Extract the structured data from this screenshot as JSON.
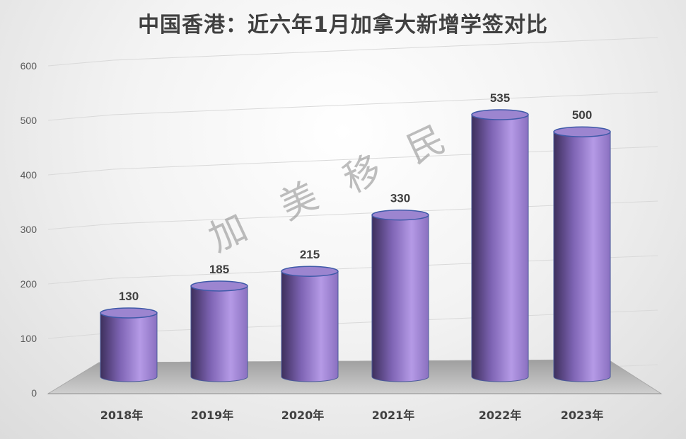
{
  "chart_data": {
    "type": "bar",
    "title": "中国香港：近六年1月加拿大新增学签对比",
    "categories": [
      "2018年",
      "2019年",
      "2020年",
      "2021年",
      "2022年",
      "2023年"
    ],
    "values": [
      130,
      185,
      215,
      330,
      535,
      500
    ],
    "data_labels": [
      "130",
      "185",
      "215",
      "330",
      "535",
      "500"
    ],
    "y_ticks": [
      "0",
      "100",
      "200",
      "300",
      "400",
      "500",
      "600"
    ],
    "ylim": [
      0,
      600
    ],
    "grid": true,
    "legend": "none",
    "style": "3d-cylinder",
    "colors": {
      "bar": "#8e72c2",
      "bar_dark": "#4a3a6e",
      "bar_light": "#b79be6",
      "bar_top": "#9b83d0",
      "floor": "#bdbdbd"
    }
  },
  "watermark": "加 美 移 民"
}
